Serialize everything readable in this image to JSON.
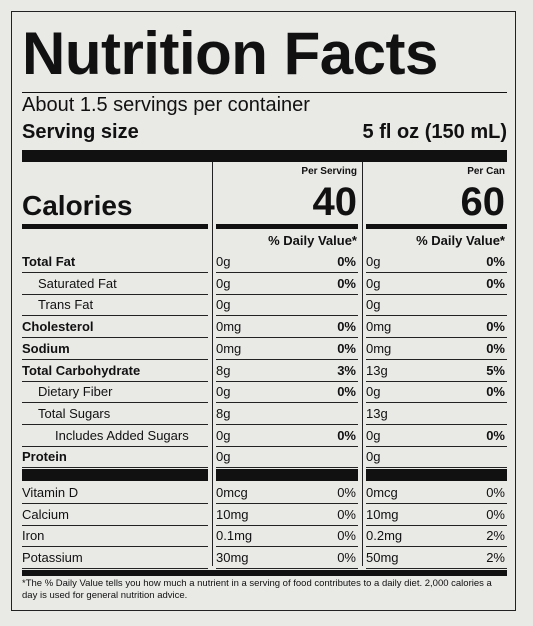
{
  "title": "Nutrition Facts",
  "servings_per_container": "About 1.5 servings per container",
  "serving_size": {
    "label": "Serving size",
    "value": "5 fl oz (150 mL)"
  },
  "columns": [
    {
      "header": "Per Serving",
      "calories": "40",
      "dv_header": "% Daily Value*"
    },
    {
      "header": "Per Can",
      "calories": "60",
      "dv_header": "% Daily Value*"
    }
  ],
  "calories_label": "Calories",
  "nutrients": [
    {
      "name": "Total Fat",
      "bold": true,
      "indent": 0,
      "values": [
        {
          "amount": "0g",
          "dv": "0%"
        },
        {
          "amount": "0g",
          "dv": "0%"
        }
      ]
    },
    {
      "name": "Saturated Fat",
      "bold": false,
      "indent": 1,
      "values": [
        {
          "amount": "0g",
          "dv": "0%"
        },
        {
          "amount": "0g",
          "dv": "0%"
        }
      ]
    },
    {
      "name": "Trans Fat",
      "bold": false,
      "indent": 1,
      "values": [
        {
          "amount": "0g",
          "dv": ""
        },
        {
          "amount": "0g",
          "dv": ""
        }
      ]
    },
    {
      "name": "Cholesterol",
      "bold": true,
      "indent": 0,
      "values": [
        {
          "amount": "0mg",
          "dv": "0%"
        },
        {
          "amount": "0mg",
          "dv": "0%"
        }
      ]
    },
    {
      "name": "Sodium",
      "bold": true,
      "indent": 0,
      "values": [
        {
          "amount": "0mg",
          "dv": "0%"
        },
        {
          "amount": "0mg",
          "dv": "0%"
        }
      ]
    },
    {
      "name": "Total Carbohydrate",
      "bold": true,
      "indent": 0,
      "values": [
        {
          "amount": "8g",
          "dv": "3%"
        },
        {
          "amount": "13g",
          "dv": "5%"
        }
      ]
    },
    {
      "name": "Dietary Fiber",
      "bold": false,
      "indent": 1,
      "values": [
        {
          "amount": "0g",
          "dv": "0%"
        },
        {
          "amount": "0g",
          "dv": "0%"
        }
      ]
    },
    {
      "name": "Total Sugars",
      "bold": false,
      "indent": 1,
      "values": [
        {
          "amount": "8g",
          "dv": ""
        },
        {
          "amount": "13g",
          "dv": ""
        }
      ]
    },
    {
      "name": "Includes Added Sugars",
      "bold": false,
      "indent": 2,
      "values": [
        {
          "amount": "0g",
          "dv": "0%"
        },
        {
          "amount": "0g",
          "dv": "0%"
        }
      ]
    },
    {
      "name": "Protein",
      "bold": true,
      "indent": 0,
      "values": [
        {
          "amount": "0g",
          "dv": ""
        },
        {
          "amount": "0g",
          "dv": ""
        }
      ]
    }
  ],
  "vitamins": [
    {
      "name": "Vitamin D",
      "values": [
        {
          "amount": "0mcg",
          "dv": "0%"
        },
        {
          "amount": "0mcg",
          "dv": "0%"
        }
      ]
    },
    {
      "name": "Calcium",
      "values": [
        {
          "amount": "10mg",
          "dv": "0%"
        },
        {
          "amount": "10mg",
          "dv": "0%"
        }
      ]
    },
    {
      "name": "Iron",
      "values": [
        {
          "amount": "0.1mg",
          "dv": "0%"
        },
        {
          "amount": "0.2mg",
          "dv": "2%"
        }
      ]
    },
    {
      "name": "Potassium",
      "values": [
        {
          "amount": "30mg",
          "dv": "0%"
        },
        {
          "amount": "50mg",
          "dv": "2%"
        }
      ]
    }
  ],
  "footnote": "*The % Daily Value tells you how much a nutrient in a serving of food contributes to a daily diet. 2,000 calories a day is used for general nutrition advice."
}
